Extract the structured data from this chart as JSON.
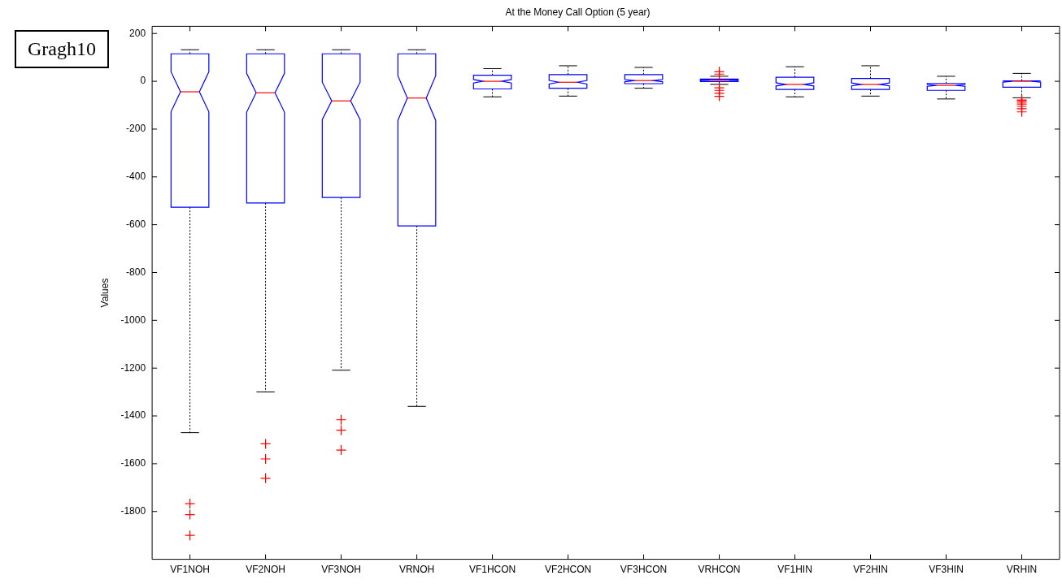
{
  "chart_data": {
    "type": "box",
    "title": "At the Money Call Option (5 year)",
    "ylabel": "Values",
    "annotations": [
      "Gragh10"
    ],
    "categories": [
      "VF1NOH",
      "VF2NOH",
      "VF3NOH",
      "VRNOH",
      "VF1HCON",
      "VF2HCON",
      "VF3HCON",
      "VRHCON",
      "VF1HIN",
      "VF2HIN",
      "VF3HIN",
      "VRHIN"
    ],
    "ylim": [
      -2000,
      230
    ],
    "yticks": [
      -1800,
      -1600,
      -1400,
      -1200,
      -1000,
      -800,
      -600,
      -400,
      -200,
      0,
      200
    ],
    "grid": false,
    "series": [
      {
        "color": "#0000ff",
        "boxes": [
          {
            "low": -1470,
            "q1": -527,
            "median": -44,
            "q3": 115,
            "high": 132,
            "outliers": [
              -1767,
              -1813,
              -1900
            ]
          },
          {
            "low": -1300,
            "q1": -509,
            "median": -48,
            "q3": 115,
            "high": 132,
            "outliers": [
              -1517,
              -1580,
              -1661
            ]
          },
          {
            "low": -1209,
            "q1": -486,
            "median": -82,
            "q3": 115,
            "high": 132,
            "outliers": [
              -1416,
              -1460,
              -1543
            ]
          },
          {
            "low": -1360,
            "q1": -605,
            "median": -70,
            "q3": 115,
            "high": 132
          },
          {
            "low": -65,
            "q1": -32,
            "median": 0,
            "q3": 25,
            "high": 53
          },
          {
            "low": -62,
            "q1": -29,
            "median": -4,
            "q3": 28,
            "high": 65
          },
          {
            "low": -29,
            "q1": -10,
            "median": 3,
            "q3": 28,
            "high": 58
          },
          {
            "low": -13,
            "q1": -1,
            "median": 5,
            "q3": 9,
            "high": 21,
            "outliers": [
              40,
              30,
              -27,
              -38,
              -50,
              -63
            ]
          },
          {
            "low": -65,
            "q1": -34,
            "median": -13,
            "q3": 17,
            "high": 61
          },
          {
            "low": -62,
            "q1": -34,
            "median": -13,
            "q3": 12,
            "high": 65
          },
          {
            "low": -74,
            "q1": -38,
            "median": -17,
            "q3": -9,
            "high": 21
          },
          {
            "low": -69,
            "q1": -25,
            "median": 0,
            "q3": 2,
            "high": 33,
            "outliers": [
              -78,
              -82,
              -88,
              -95,
              -105,
              -115,
              -128
            ]
          }
        ]
      }
    ]
  }
}
